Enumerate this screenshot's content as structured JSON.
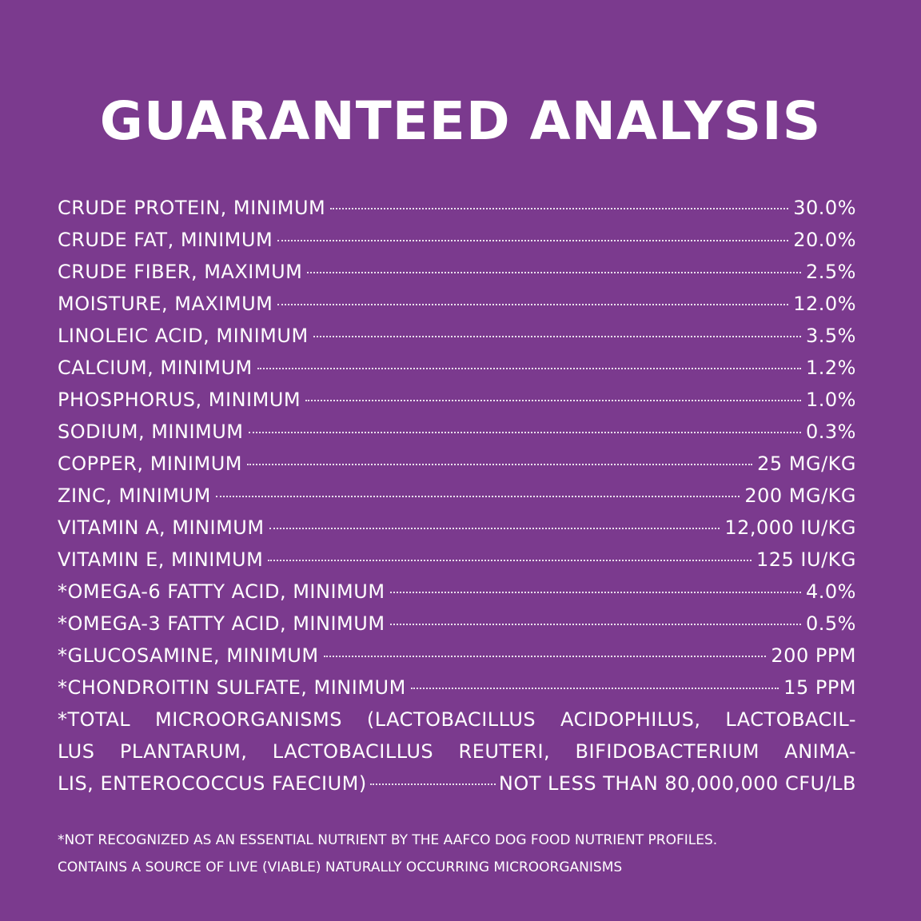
{
  "title": "GUARANTEED ANALYSIS",
  "rows": [
    {
      "label": "CRUDE PROTEIN, MINIMUM",
      "value": "30.0%"
    },
    {
      "label": "CRUDE FAT, MINIMUM",
      "value": "20.0%"
    },
    {
      "label": "CRUDE FIBER, MAXIMUM",
      "value": "2.5%"
    },
    {
      "label": "MOISTURE, MAXIMUM",
      "value": "12.0%"
    },
    {
      "label": "LINOLEIC ACID, MINIMUM",
      "value": "3.5%"
    },
    {
      "label": "CALCIUM, MINIMUM",
      "value": "1.2%"
    },
    {
      "label": "PHOSPHORUS, MINIMUM",
      "value": "1.0%"
    },
    {
      "label": "SODIUM, MINIMUM",
      "value": "0.3%"
    },
    {
      "label": "COPPER, MINIMUM",
      "value": "25 MG/KG"
    },
    {
      "label": "ZINC, MINIMUM",
      "value": "200 MG/KG"
    },
    {
      "label": "VITAMIN A, MINIMUM",
      "value": "12,000 IU/KG"
    },
    {
      "label": "VITAMIN E, MINIMUM",
      "value": "125 IU/KG"
    },
    {
      "label": "*OMEGA-6 FATTY ACID, MINIMUM",
      "value": "4.0%"
    },
    {
      "label": "*OMEGA-3 FATTY ACID, MINIMUM",
      "value": "0.5%"
    },
    {
      "label": "*GLUCOSAMINE, MINIMUM",
      "value": "200 PPM"
    },
    {
      "label": "*CHONDROITIN SULFATE, MINIMUM",
      "value": "15 PPM"
    }
  ],
  "microorganisms": {
    "line1": "*TOTAL MICROORGANISMS (LACTOBACILLUS ACIDOPHILUS, LACTOBACIL-",
    "line2": "LUS PLANTARUM, LACTOBACILLUS REUTERI, BIFIDOBACTERIUM ANIMA-",
    "line3_label": "LIS, ENTEROCOCCUS FAECIUM)",
    "line3_value": "NOT LESS THAN 80,000,000 CFU/LB"
  },
  "footnotes": {
    "note1": "*NOT RECOGNIZED AS AN ESSENTIAL NUTRIENT BY THE AAFCO DOG FOOD NUTRIENT PROFILES.",
    "note2": "CONTAINS A SOURCE OF LIVE (VIABLE) NATURALLY OCCURRING MICROORGANISMS"
  },
  "colors": {
    "background": "#7b3a8e",
    "text": "#ffffff"
  }
}
